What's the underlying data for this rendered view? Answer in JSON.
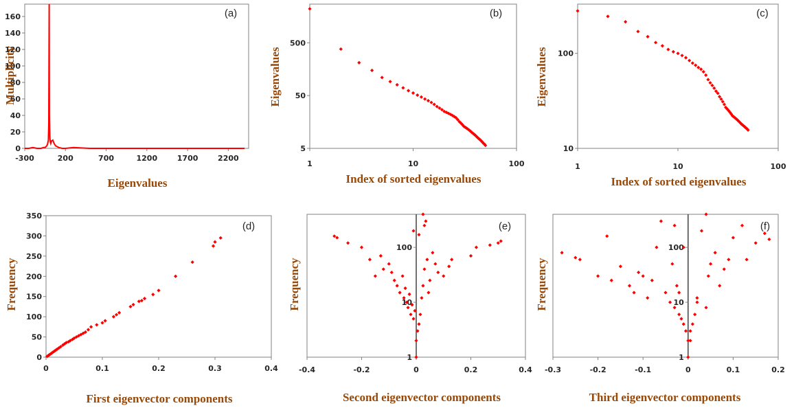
{
  "colors": {
    "marker": "#ff0000",
    "axis_label": "#984807",
    "tick": "#262626",
    "axis": "#808080"
  },
  "chart_data": [
    {
      "id": "a",
      "type": "line",
      "panel_label": "(a)",
      "xlabel": "Eigenvalues",
      "ylabel": "Multiplicity",
      "xlim": [
        -300,
        2450
      ],
      "ylim": [
        0,
        175
      ],
      "xticks": [
        "-300",
        "200",
        "700",
        "1200",
        "1700",
        "2200"
      ],
      "xtick_values": [
        -300,
        200,
        700,
        1200,
        1700,
        2200
      ],
      "yticks": [
        "0",
        "20",
        "40",
        "60",
        "80",
        "100",
        "120",
        "140",
        "160"
      ],
      "ytick_values": [
        0,
        20,
        40,
        60,
        80,
        100,
        120,
        140,
        160
      ],
      "x": [
        -300,
        -250,
        -200,
        -150,
        -100,
        -70,
        -50,
        -30,
        -20,
        -10,
        -5,
        0,
        3,
        6,
        10,
        15,
        20,
        30,
        45,
        60,
        80,
        100,
        120,
        160,
        200,
        300,
        500,
        800,
        1200,
        1700,
        2200,
        2400
      ],
      "y": [
        0,
        0,
        1,
        0,
        0,
        1,
        1,
        3,
        5,
        10,
        30,
        175,
        40,
        25,
        12,
        8,
        6,
        9,
        10,
        6,
        3,
        2,
        1,
        0,
        0,
        1,
        0,
        0,
        0,
        0,
        0,
        0
      ]
    },
    {
      "id": "b",
      "type": "scatter",
      "panel_label": "(b)",
      "xlabel": "Index of sorted eigenvalues",
      "ylabel": "Eigenvalues",
      "xscale": "log",
      "yscale": "log",
      "xlim": [
        1,
        100
      ],
      "ylim": [
        5,
        2700
      ],
      "xticks": [
        "1",
        "10",
        "100"
      ],
      "xtick_values": [
        1,
        10,
        100
      ],
      "yticks": [
        "5",
        "50",
        "500"
      ],
      "ytick_values": [
        5,
        50,
        500
      ],
      "x": [
        1,
        2,
        3,
        4,
        5,
        6,
        7,
        8,
        9,
        10,
        11,
        12,
        13,
        14,
        15,
        16,
        17,
        18,
        19,
        20,
        21,
        22,
        23,
        24,
        25,
        26,
        27,
        28,
        29,
        30,
        31,
        32,
        33,
        34,
        35,
        36,
        37,
        38,
        39,
        40,
        41,
        42,
        43,
        44,
        45,
        46,
        47,
        48,
        49,
        50
      ],
      "y": [
        2200,
        380,
        210,
        150,
        110,
        92,
        80,
        70,
        62,
        56,
        51,
        47,
        43,
        40,
        37,
        34,
        31,
        29,
        27,
        25,
        24,
        23,
        22,
        21,
        20,
        19,
        17.5,
        16,
        15,
        14,
        13,
        12.5,
        12,
        11.5,
        11,
        10.5,
        10,
        9.6,
        9.2,
        8.8,
        8.4,
        8.0,
        7.7,
        7.4,
        7.1,
        6.8,
        6.5,
        6.2,
        6.0,
        5.7
      ]
    },
    {
      "id": "c",
      "type": "scatter",
      "panel_label": "(c)",
      "xlabel": "Index of sorted eigenvalues",
      "ylabel": "Eigenvalues",
      "xscale": "log",
      "yscale": "log",
      "xlim": [
        1,
        100
      ],
      "ylim": [
        10,
        330
      ],
      "xticks": [
        "1",
        "10",
        "100"
      ],
      "xtick_values": [
        1,
        10,
        100
      ],
      "yticks": [
        "10",
        "100"
      ],
      "ytick_values": [
        10,
        100
      ],
      "x": [
        1,
        2,
        3,
        4,
        5,
        6,
        7,
        8,
        9,
        10,
        11,
        12,
        13,
        14,
        15,
        16,
        17,
        18,
        19,
        20,
        21,
        22,
        23,
        24,
        25,
        26,
        27,
        28,
        29,
        30,
        31,
        32,
        33,
        34,
        35,
        36,
        37,
        38,
        39,
        40,
        41,
        42,
        43,
        44,
        45,
        46,
        47,
        48,
        49,
        50
      ],
      "y": [
        280,
        245,
        215,
        170,
        150,
        130,
        120,
        110,
        104,
        100,
        95,
        90,
        84,
        79,
        75,
        71,
        68,
        64,
        59,
        53,
        49,
        46,
        43,
        40,
        38,
        35,
        33,
        31,
        29,
        27,
        26,
        25,
        24,
        23,
        22,
        21.5,
        21,
        20.5,
        20,
        19.5,
        19,
        18.5,
        18,
        17.7,
        17.3,
        17,
        16.6,
        16.3,
        16,
        15.6
      ]
    },
    {
      "id": "d",
      "type": "scatter",
      "panel_label": "(d)",
      "xlabel": "First eigenvector components",
      "ylabel": "Frequency",
      "xlim": [
        0,
        0.4
      ],
      "ylim": [
        0,
        350
      ],
      "xticks": [
        "0",
        "0.1",
        "0.2",
        "0.3",
        "0.4"
      ],
      "xtick_values": [
        0,
        0.1,
        0.2,
        0.3,
        0.4
      ],
      "yticks": [
        "0",
        "50",
        "100",
        "150",
        "200",
        "250",
        "300",
        "350"
      ],
      "ytick_values": [
        0,
        50,
        100,
        150,
        200,
        250,
        300,
        350
      ],
      "x": [
        0.002,
        0.004,
        0.006,
        0.008,
        0.01,
        0.012,
        0.014,
        0.016,
        0.018,
        0.02,
        0.023,
        0.026,
        0.03,
        0.033,
        0.036,
        0.04,
        0.043,
        0.047,
        0.05,
        0.054,
        0.058,
        0.062,
        0.066,
        0.07,
        0.075,
        0.08,
        0.09,
        0.1,
        0.105,
        0.12,
        0.125,
        0.13,
        0.15,
        0.155,
        0.165,
        0.17,
        0.175,
        0.19,
        0.2,
        0.23,
        0.26,
        0.297,
        0.3,
        0.31
      ],
      "y": [
        2,
        4,
        6,
        8,
        10,
        12,
        14,
        16,
        18,
        20,
        23,
        26,
        30,
        33,
        36,
        38,
        41,
        44,
        47,
        50,
        53,
        56,
        59,
        62,
        68,
        75,
        80,
        85,
        90,
        100,
        105,
        110,
        125,
        130,
        138,
        140,
        145,
        155,
        165,
        200,
        235,
        275,
        285,
        295
      ]
    },
    {
      "id": "e",
      "type": "scatter",
      "panel_label": "(e)",
      "xlabel": "Second eigenvector components",
      "ylabel": "Frequency",
      "yscale": "log",
      "xlim": [
        -0.4,
        0.4
      ],
      "ylim": [
        1,
        400
      ],
      "xticks": [
        "-0.4",
        "-0.2",
        "0",
        "0.2",
        "0.4"
      ],
      "xtick_values": [
        -0.4,
        -0.2,
        0,
        0.2,
        0.4
      ],
      "yticks": [
        "1",
        "10",
        "100"
      ],
      "ytick_values": [
        1,
        10,
        100
      ],
      "x": [
        -0.3,
        -0.29,
        -0.25,
        -0.2,
        -0.17,
        -0.15,
        -0.13,
        -0.12,
        -0.1,
        -0.09,
        -0.08,
        -0.07,
        -0.06,
        -0.05,
        -0.045,
        -0.04,
        -0.035,
        -0.03,
        -0.025,
        -0.02,
        -0.015,
        -0.01,
        -0.005,
        0,
        0.005,
        0.01,
        0.015,
        0.02,
        0.025,
        0.03,
        0.035,
        0.04,
        0.045,
        0.05,
        0.06,
        0.07,
        0.08,
        0.1,
        0.12,
        0.13,
        0.2,
        0.22,
        0.27,
        0.3,
        0.31,
        0.025,
        0.03,
        0.01,
        -0.01,
        0.0
      ],
      "y": [
        160,
        150,
        120,
        100,
        60,
        30,
        70,
        40,
        50,
        35,
        25,
        20,
        15,
        30,
        12,
        18,
        10,
        8,
        14,
        6,
        9,
        5,
        7,
        1,
        3,
        4,
        6,
        12,
        20,
        40,
        300,
        60,
        15,
        25,
        80,
        50,
        35,
        30,
        45,
        60,
        70,
        100,
        110,
        120,
        130,
        400,
        250,
        170,
        200,
        2
      ]
    },
    {
      "id": "f",
      "type": "scatter",
      "panel_label": "(f)",
      "xlabel": "Third eigenvector components",
      "ylabel": "Frequency",
      "yscale": "log",
      "xlim": [
        -0.3,
        0.2
      ],
      "ylim": [
        1,
        400
      ],
      "xticks": [
        "-0.3",
        "-0.2",
        "-0.1",
        "0",
        "0.1",
        "0.2"
      ],
      "xtick_values": [
        -0.3,
        -0.2,
        -0.1,
        0,
        0.1,
        0.2
      ],
      "yticks": [
        "1",
        "10",
        "100"
      ],
      "ytick_values": [
        1,
        10,
        100
      ],
      "x": [
        -0.28,
        -0.25,
        -0.24,
        -0.2,
        -0.18,
        -0.17,
        -0.15,
        -0.13,
        -0.12,
        -0.11,
        -0.1,
        -0.09,
        -0.08,
        -0.07,
        -0.06,
        -0.05,
        -0.04,
        -0.035,
        -0.03,
        -0.025,
        -0.02,
        -0.015,
        -0.01,
        -0.005,
        0,
        0.005,
        0.01,
        0.015,
        0.02,
        0.03,
        0.04,
        0.045,
        0.05,
        0.06,
        0.07,
        0.08,
        0.09,
        0.1,
        0.12,
        0.13,
        0.15,
        0.17,
        0.18,
        -0.03,
        -0.01,
        0.04,
        0.02,
        -0.02,
        0.0,
        0.005
      ],
      "y": [
        80,
        65,
        60,
        30,
        160,
        25,
        45,
        20,
        15,
        35,
        30,
        12,
        25,
        100,
        300,
        15,
        10,
        50,
        8,
        20,
        6,
        5,
        4,
        3,
        1,
        2,
        4,
        6,
        12,
        200,
        400,
        30,
        50,
        80,
        20,
        40,
        60,
        150,
        250,
        60,
        120,
        180,
        140,
        250,
        100,
        8,
        10,
        15,
        2,
        3
      ]
    }
  ]
}
